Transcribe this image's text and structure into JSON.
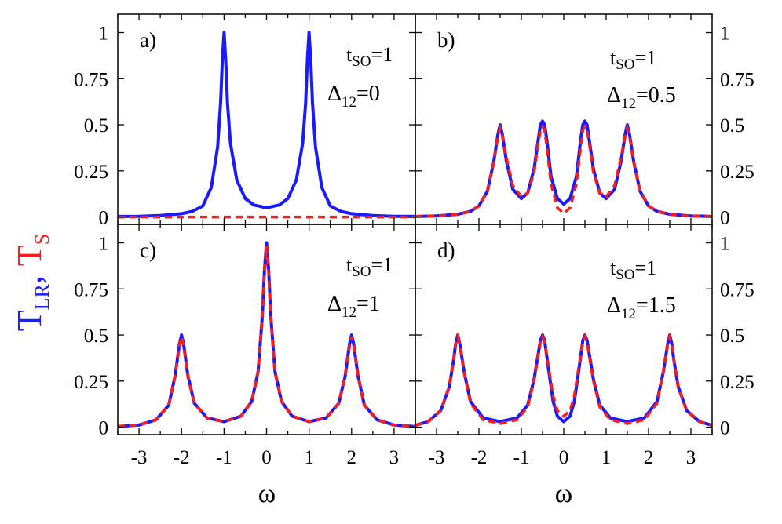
{
  "chart_data": [
    {
      "type": "line",
      "panel_label": "a)",
      "param_label": "t",
      "param_sub": "SO",
      "param_value": "=1",
      "delta_label": "Δ",
      "delta_sub": "12",
      "delta_value": "=0",
      "xlim": [
        -3.5,
        3.5
      ],
      "ylim": [
        -0.04,
        1.1
      ],
      "series": [
        {
          "role": "T_LR",
          "color": "#1a1aff",
          "style": "solid",
          "x": [
            -3.5,
            -3.0,
            -2.5,
            -2.0,
            -1.75,
            -1.5,
            -1.3,
            -1.15,
            -1.08,
            -1.04,
            -1.0,
            -0.96,
            -0.92,
            -0.85,
            -0.7,
            -0.5,
            -0.3,
            0.0,
            0.3,
            0.5,
            0.7,
            0.85,
            0.92,
            0.96,
            1.0,
            1.04,
            1.08,
            1.15,
            1.3,
            1.5,
            1.75,
            2.0,
            2.5,
            3.0,
            3.5
          ],
          "y": [
            0.003,
            0.004,
            0.008,
            0.018,
            0.03,
            0.06,
            0.16,
            0.38,
            0.62,
            0.85,
            1.0,
            0.85,
            0.62,
            0.4,
            0.2,
            0.1,
            0.065,
            0.05,
            0.065,
            0.1,
            0.2,
            0.4,
            0.62,
            0.85,
            1.0,
            0.85,
            0.62,
            0.38,
            0.16,
            0.06,
            0.03,
            0.018,
            0.008,
            0.004,
            0.003
          ]
        },
        {
          "role": "T_S",
          "color": "#ff1a1a",
          "style": "dashed",
          "x": [
            -3.5,
            3.5
          ],
          "y": [
            0.0,
            0.0
          ]
        }
      ]
    },
    {
      "type": "line",
      "panel_label": "b)",
      "param_label": "t",
      "param_sub": "SO",
      "param_value": "=1",
      "delta_label": "Δ",
      "delta_sub": "12",
      "delta_value": "=0.5",
      "xlim": [
        -3.5,
        3.5
      ],
      "ylim": [
        -0.04,
        1.1
      ],
      "series": [
        {
          "role": "T_LR",
          "color": "#1a1aff",
          "style": "solid",
          "x": [
            -3.5,
            -3.0,
            -2.5,
            -2.2,
            -2.0,
            -1.8,
            -1.65,
            -1.55,
            -1.5,
            -1.45,
            -1.35,
            -1.2,
            -1.0,
            -0.85,
            -0.7,
            -0.6,
            -0.55,
            -0.5,
            -0.45,
            -0.4,
            -0.3,
            -0.15,
            0.0,
            0.15,
            0.3,
            0.4,
            0.45,
            0.5,
            0.55,
            0.6,
            0.7,
            0.85,
            1.0,
            1.2,
            1.35,
            1.45,
            1.5,
            1.55,
            1.65,
            1.8,
            2.0,
            2.2,
            2.5,
            3.0,
            3.5
          ],
          "y": [
            0.003,
            0.006,
            0.015,
            0.03,
            0.06,
            0.14,
            0.3,
            0.45,
            0.5,
            0.45,
            0.3,
            0.15,
            0.1,
            0.13,
            0.26,
            0.42,
            0.5,
            0.52,
            0.5,
            0.42,
            0.22,
            0.1,
            0.07,
            0.1,
            0.22,
            0.42,
            0.5,
            0.52,
            0.5,
            0.42,
            0.26,
            0.13,
            0.1,
            0.15,
            0.3,
            0.45,
            0.5,
            0.45,
            0.3,
            0.14,
            0.06,
            0.03,
            0.015,
            0.006,
            0.003
          ]
        },
        {
          "role": "T_S",
          "color": "#ff1a1a",
          "style": "dashed",
          "x": [
            -3.5,
            -3.0,
            -2.5,
            -2.2,
            -2.0,
            -1.8,
            -1.65,
            -1.55,
            -1.5,
            -1.45,
            -1.35,
            -1.2,
            -1.0,
            -0.85,
            -0.7,
            -0.6,
            -0.55,
            -0.5,
            -0.45,
            -0.4,
            -0.3,
            -0.15,
            0.0,
            0.15,
            0.3,
            0.4,
            0.45,
            0.5,
            0.55,
            0.6,
            0.7,
            0.85,
            1.0,
            1.2,
            1.35,
            1.45,
            1.5,
            1.55,
            1.65,
            1.8,
            2.0,
            2.2,
            2.5,
            3.0,
            3.5
          ],
          "y": [
            0.003,
            0.006,
            0.015,
            0.03,
            0.06,
            0.14,
            0.3,
            0.44,
            0.48,
            0.44,
            0.32,
            0.17,
            0.11,
            0.13,
            0.24,
            0.4,
            0.47,
            0.49,
            0.47,
            0.38,
            0.18,
            0.05,
            0.02,
            0.05,
            0.18,
            0.38,
            0.47,
            0.49,
            0.47,
            0.4,
            0.24,
            0.13,
            0.11,
            0.17,
            0.32,
            0.44,
            0.48,
            0.44,
            0.3,
            0.14,
            0.06,
            0.03,
            0.015,
            0.006,
            0.003
          ]
        }
      ]
    },
    {
      "type": "line",
      "panel_label": "c)",
      "param_label": "t",
      "param_sub": "SO",
      "param_value": "=1",
      "delta_label": "Δ",
      "delta_sub": "12",
      "delta_value": "=1",
      "xlim": [
        -3.5,
        3.5
      ],
      "ylim": [
        -0.04,
        1.1
      ],
      "series": [
        {
          "role": "T_LR",
          "color": "#1a1aff",
          "style": "solid",
          "x": [
            -3.5,
            -3.0,
            -2.6,
            -2.3,
            -2.15,
            -2.05,
            -2.0,
            -1.95,
            -1.85,
            -1.7,
            -1.4,
            -1.0,
            -0.6,
            -0.35,
            -0.2,
            -0.1,
            -0.05,
            0.0,
            0.05,
            0.1,
            0.2,
            0.35,
            0.6,
            1.0,
            1.4,
            1.7,
            1.85,
            1.95,
            2.0,
            2.05,
            2.15,
            2.3,
            2.6,
            3.0,
            3.5
          ],
          "y": [
            0.004,
            0.012,
            0.04,
            0.12,
            0.28,
            0.45,
            0.5,
            0.45,
            0.28,
            0.13,
            0.05,
            0.03,
            0.06,
            0.14,
            0.3,
            0.6,
            0.85,
            1.0,
            0.85,
            0.6,
            0.3,
            0.14,
            0.06,
            0.03,
            0.05,
            0.13,
            0.28,
            0.45,
            0.5,
            0.45,
            0.28,
            0.12,
            0.04,
            0.012,
            0.004
          ]
        },
        {
          "role": "T_S",
          "color": "#ff1a1a",
          "style": "dashed",
          "x": [
            -3.5,
            -3.0,
            -2.6,
            -2.3,
            -2.15,
            -2.05,
            -2.0,
            -1.95,
            -1.85,
            -1.7,
            -1.4,
            -1.0,
            -0.6,
            -0.35,
            -0.2,
            -0.1,
            -0.05,
            0.0,
            0.05,
            0.1,
            0.2,
            0.35,
            0.6,
            1.0,
            1.4,
            1.7,
            1.85,
            1.95,
            2.0,
            2.05,
            2.15,
            2.3,
            2.6,
            3.0,
            3.5
          ],
          "y": [
            0.004,
            0.012,
            0.04,
            0.12,
            0.28,
            0.44,
            0.49,
            0.44,
            0.28,
            0.13,
            0.05,
            0.03,
            0.06,
            0.14,
            0.3,
            0.6,
            0.84,
            0.98,
            0.84,
            0.6,
            0.3,
            0.14,
            0.06,
            0.03,
            0.05,
            0.13,
            0.28,
            0.44,
            0.49,
            0.44,
            0.28,
            0.12,
            0.04,
            0.012,
            0.004
          ]
        }
      ]
    },
    {
      "type": "line",
      "panel_label": "d)",
      "param_label": "t",
      "param_sub": "SO",
      "param_value": "=1",
      "delta_label": "Δ",
      "delta_sub": "12",
      "delta_value": "=1.5",
      "xlim": [
        -3.5,
        3.5
      ],
      "ylim": [
        -0.04,
        1.1
      ],
      "series": [
        {
          "role": "T_LR",
          "color": "#1a1aff",
          "style": "solid",
          "x": [
            -3.5,
            -3.2,
            -2.9,
            -2.7,
            -2.6,
            -2.55,
            -2.5,
            -2.45,
            -2.35,
            -2.2,
            -1.9,
            -1.5,
            -1.1,
            -0.85,
            -0.7,
            -0.6,
            -0.55,
            -0.5,
            -0.45,
            -0.35,
            -0.25,
            -0.15,
            0.0,
            0.15,
            0.25,
            0.35,
            0.45,
            0.5,
            0.55,
            0.6,
            0.7,
            0.85,
            1.1,
            1.5,
            1.9,
            2.2,
            2.35,
            2.45,
            2.5,
            2.55,
            2.6,
            2.7,
            2.9,
            3.2,
            3.5
          ],
          "y": [
            0.01,
            0.03,
            0.09,
            0.22,
            0.36,
            0.45,
            0.5,
            0.45,
            0.3,
            0.14,
            0.05,
            0.03,
            0.05,
            0.12,
            0.26,
            0.4,
            0.47,
            0.5,
            0.47,
            0.3,
            0.14,
            0.06,
            0.03,
            0.06,
            0.14,
            0.3,
            0.47,
            0.5,
            0.47,
            0.4,
            0.26,
            0.12,
            0.05,
            0.03,
            0.05,
            0.14,
            0.3,
            0.45,
            0.5,
            0.45,
            0.36,
            0.22,
            0.09,
            0.03,
            0.01
          ]
        },
        {
          "role": "T_S",
          "color": "#ff1a1a",
          "style": "dashed",
          "x": [
            -3.5,
            -3.2,
            -2.9,
            -2.7,
            -2.6,
            -2.55,
            -2.5,
            -2.45,
            -2.35,
            -2.2,
            -1.9,
            -1.5,
            -1.1,
            -0.85,
            -0.7,
            -0.6,
            -0.55,
            -0.5,
            -0.45,
            -0.35,
            -0.25,
            -0.15,
            0.0,
            0.15,
            0.25,
            0.35,
            0.45,
            0.5,
            0.55,
            0.6,
            0.7,
            0.85,
            1.1,
            1.5,
            1.9,
            2.2,
            2.35,
            2.45,
            2.5,
            2.55,
            2.6,
            2.7,
            2.9,
            3.2,
            3.5
          ],
          "y": [
            0.01,
            0.03,
            0.09,
            0.22,
            0.36,
            0.45,
            0.49,
            0.45,
            0.3,
            0.13,
            0.04,
            0.02,
            0.04,
            0.11,
            0.25,
            0.39,
            0.46,
            0.49,
            0.46,
            0.32,
            0.17,
            0.09,
            0.06,
            0.09,
            0.17,
            0.32,
            0.46,
            0.49,
            0.46,
            0.39,
            0.25,
            0.11,
            0.04,
            0.02,
            0.04,
            0.13,
            0.3,
            0.45,
            0.49,
            0.45,
            0.36,
            0.22,
            0.09,
            0.03,
            0.01
          ]
        }
      ]
    }
  ],
  "axes": {
    "xticks": [
      -3,
      -2,
      -1,
      0,
      1,
      2,
      3
    ],
    "xtick_labels": [
      "-3",
      "-2",
      "-1",
      "0",
      "1",
      "2",
      "3"
    ],
    "yticks": [
      0,
      0.25,
      0.5,
      0.75,
      1
    ],
    "ytick_labels": [
      "0",
      "0.25",
      "0.5",
      "0.75",
      "1"
    ],
    "xlabel": "ω",
    "ylabel_main_a": "T",
    "ylabel_sub_a": "LR",
    "ylabel_sep": ",",
    "ylabel_main_b": "T",
    "ylabel_sub_b": "S"
  }
}
